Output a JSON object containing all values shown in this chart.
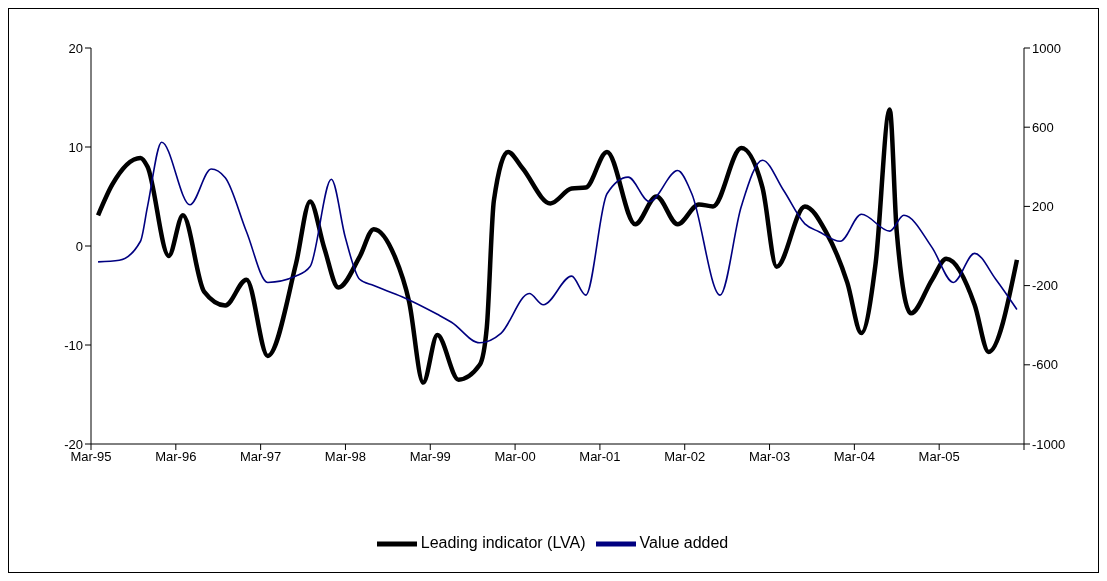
{
  "chart_data": {
    "type": "line",
    "xlim": [
      "1995-03",
      "2006-03"
    ],
    "xticks": [
      {
        "value": "1995-03",
        "label": "Mar-95"
      },
      {
        "value": "1996-03",
        "label": "Mar-96"
      },
      {
        "value": "1997-03",
        "label": "Mar-97"
      },
      {
        "value": "1998-03",
        "label": "Mar-98"
      },
      {
        "value": "1999-03",
        "label": "Mar-99"
      },
      {
        "value": "2000-03",
        "label": "Mar-00"
      },
      {
        "value": "2001-03",
        "label": "Mar-01"
      },
      {
        "value": "2002-03",
        "label": "Mar-02"
      },
      {
        "value": "2003-03",
        "label": "Mar-03"
      },
      {
        "value": "2004-03",
        "label": "Mar-04"
      },
      {
        "value": "2005-03",
        "label": "Mar-05"
      },
      {
        "value": "2006-03",
        "label": null
      }
    ],
    "ylim": [
      -20,
      20
    ],
    "yticks": [
      -20,
      -10,
      0,
      10,
      20
    ],
    "y2lim": [
      -1000,
      1000
    ],
    "y2ticks": [
      -1000,
      -600,
      -200,
      200,
      600,
      1000
    ],
    "legend": "bottom",
    "marker": "none",
    "series": [
      {
        "name": "Leading indicator (LVA)",
        "color": "#000000",
        "x": [
          "1995-04",
          "1995-06",
          "1995-10",
          "1995-11",
          "1996-02",
          "1996-04",
          "1996-07",
          "1996-10",
          "1997-01",
          "1997-04",
          "1997-08",
          "1997-10",
          "1997-12",
          "1998-02",
          "1998-05",
          "1998-07",
          "1998-10",
          "1998-12",
          "1999-02",
          "1999-04",
          "1999-07",
          "1999-10",
          "1999-11",
          "1999-12",
          "2000-02",
          "2000-04",
          "2000-08",
          "2000-11",
          "2001-01",
          "2001-04",
          "2001-08",
          "2001-11",
          "2002-02",
          "2002-05",
          "2002-07",
          "2002-11",
          "2003-02",
          "2003-04",
          "2003-08",
          "2003-11",
          "2004-02",
          "2004-04",
          "2004-06",
          "2004-08",
          "2004-09",
          "2004-11",
          "2005-02",
          "2005-04",
          "2005-08",
          "2005-10",
          "2006-02"
        ],
        "values": [
          3.1,
          6.2,
          8.9,
          8.0,
          -1.0,
          3.1,
          -4.6,
          -6.0,
          -3.4,
          -11.1,
          -1.8,
          4.5,
          -0.2,
          -4.2,
          -1.1,
          1.7,
          -1.1,
          -5.6,
          -13.8,
          -9.0,
          -13.5,
          -12.0,
          -8.2,
          4.6,
          9.5,
          7.9,
          4.3,
          5.8,
          5.9,
          9.5,
          2.2,
          5.0,
          2.2,
          4.2,
          4.0,
          9.9,
          5.9,
          -2.1,
          4.0,
          1.4,
          -3.7,
          -8.8,
          -1.8,
          13.8,
          1.4,
          -6.8,
          -3.4,
          -1.3,
          -5.9,
          -10.7,
          -1.4
        ]
      },
      {
        "name": "Value added",
        "color": "#000080",
        "axis": "y2",
        "x": [
          "1995-04",
          "1995-07",
          "1995-10",
          "1995-11",
          "1996-01",
          "1996-05",
          "1996-08",
          "1996-10",
          "1997-01",
          "1997-04",
          "1997-08",
          "1997-10",
          "1998-01",
          "1998-03",
          "1998-05",
          "1998-07",
          "1998-11",
          "1999-04",
          "1999-06",
          "1999-10",
          "2000-01",
          "2000-05",
          "2000-07",
          "2000-11",
          "2001-01",
          "2001-04",
          "2001-07",
          "2001-10",
          "2002-02",
          "2002-04",
          "2002-08",
          "2002-11",
          "2003-02",
          "2003-05",
          "2003-08",
          "2003-10",
          "2004-01",
          "2004-04",
          "2004-08",
          "2004-10",
          "2005-02",
          "2005-05",
          "2005-08",
          "2005-11",
          "2006-02"
        ],
        "values": [
          -80,
          -72,
          24,
          200,
          524,
          208,
          389,
          345,
          72,
          -184,
          -152,
          -104,
          337,
          40,
          -168,
          -200,
          -256,
          -345,
          -385,
          -489,
          -441,
          -240,
          -297,
          -152,
          -248,
          264,
          348,
          224,
          381,
          264,
          -248,
          200,
          433,
          280,
          112,
          72,
          24,
          160,
          75,
          155,
          -8,
          -184,
          -37,
          -168,
          -321
        ]
      }
    ]
  }
}
